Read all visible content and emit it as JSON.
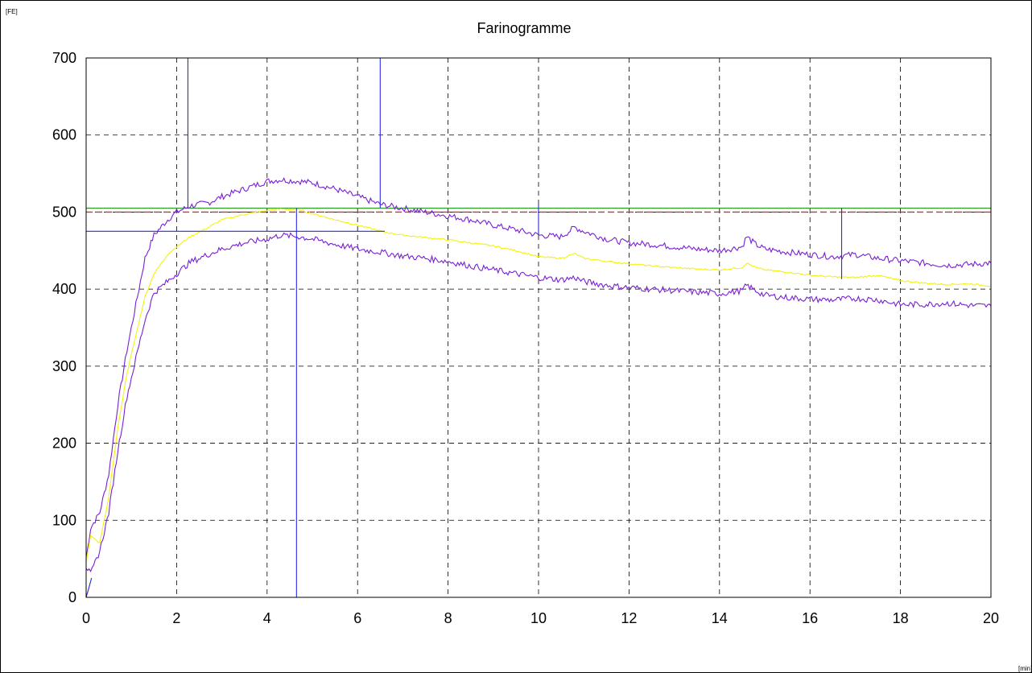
{
  "chart_data": {
    "type": "line",
    "title": "Farinogramme",
    "y_unit_label": "[FE]",
    "x_unit_label": "[min]",
    "xlim": [
      0,
      20
    ],
    "ylim": [
      0,
      700
    ],
    "x_ticks": [
      "0",
      "2",
      "4",
      "6",
      "8",
      "10",
      "12",
      "14",
      "16",
      "18",
      "20"
    ],
    "y_ticks": [
      "0",
      "100",
      "200",
      "300",
      "400",
      "500",
      "600",
      "700"
    ],
    "grid": true,
    "reference_lines": [
      {
        "y": 500,
        "color": "#d03030",
        "style": "dashed"
      },
      {
        "y": 505,
        "color": "#2e9a2e",
        "style": "solid"
      }
    ],
    "series": [
      {
        "role": "upper-band",
        "color": "#7a1fd6",
        "x": [
          0,
          0.1,
          0.3,
          0.5,
          0.7,
          0.9,
          1.1,
          1.3,
          1.5,
          1.8,
          2.0,
          2.3,
          2.7,
          3.0,
          3.5,
          4.0,
          4.3,
          4.7,
          5.0,
          5.5,
          6.0,
          6.5,
          7.0,
          7.5,
          8.0,
          8.5,
          9.0,
          9.5,
          10.0,
          10.5,
          10.8,
          11.0,
          11.5,
          12.0,
          12.5,
          13.0,
          13.5,
          14.0,
          14.5,
          14.6,
          14.8,
          15.0,
          15.5,
          16.0,
          16.5,
          17.0,
          17.5,
          18.0,
          18.5,
          19.0,
          19.5,
          20.0
        ],
        "y": [
          50,
          90,
          110,
          160,
          250,
          320,
          380,
          440,
          470,
          490,
          500,
          508,
          512,
          520,
          530,
          540,
          542,
          540,
          538,
          530,
          520,
          510,
          505,
          500,
          495,
          490,
          483,
          477,
          470,
          468,
          480,
          475,
          465,
          460,
          458,
          455,
          452,
          450,
          455,
          468,
          458,
          452,
          448,
          445,
          442,
          445,
          440,
          437,
          434,
          431,
          432,
          434
        ]
      },
      {
        "role": "mean-curve",
        "color": "#f2f20e",
        "x": [
          0,
          0.1,
          0.3,
          0.5,
          0.7,
          0.9,
          1.1,
          1.3,
          1.5,
          1.8,
          2.0,
          2.3,
          2.7,
          3.0,
          3.5,
          4.0,
          4.3,
          4.7,
          5.0,
          5.5,
          6.0,
          6.6,
          7.0,
          7.5,
          8.0,
          8.5,
          9.0,
          9.5,
          10.0,
          10.5,
          10.8,
          11.0,
          11.5,
          12.0,
          12.5,
          13.0,
          13.5,
          14.0,
          14.5,
          14.6,
          14.8,
          15.0,
          15.5,
          16.0,
          16.5,
          17.0,
          17.5,
          18.0,
          18.5,
          19.0,
          19.5,
          20.0
        ],
        "y": [
          45,
          80,
          70,
          130,
          220,
          290,
          340,
          390,
          420,
          445,
          455,
          468,
          480,
          490,
          497,
          502,
          504,
          503,
          498,
          490,
          483,
          474,
          470,
          467,
          464,
          460,
          456,
          450,
          442,
          440,
          446,
          440,
          436,
          433,
          430,
          428,
          426,
          425,
          428,
          434,
          428,
          425,
          422,
          418,
          416,
          415,
          418,
          411,
          408,
          406,
          407,
          404
        ]
      },
      {
        "role": "lower-band",
        "color": "#7a1fd6",
        "x": [
          0,
          0.1,
          0.3,
          0.5,
          0.7,
          0.9,
          1.1,
          1.3,
          1.5,
          1.8,
          2.0,
          2.3,
          2.7,
          3.0,
          3.5,
          4.0,
          4.3,
          4.7,
          5.0,
          5.5,
          6.0,
          6.5,
          7.0,
          7.5,
          8.0,
          8.5,
          9.0,
          9.5,
          10.0,
          10.5,
          10.8,
          11.0,
          11.5,
          12.0,
          12.5,
          13.0,
          13.5,
          14.0,
          14.5,
          14.6,
          14.8,
          15.0,
          15.5,
          16.0,
          16.5,
          17.0,
          17.5,
          18.0,
          18.5,
          19.0,
          19.5,
          20.0
        ],
        "y": [
          40,
          30,
          60,
          110,
          190,
          260,
          310,
          360,
          395,
          410,
          420,
          435,
          445,
          452,
          460,
          465,
          470,
          468,
          465,
          458,
          452,
          448,
          443,
          440,
          436,
          430,
          425,
          420,
          415,
          412,
          415,
          410,
          405,
          402,
          400,
          398,
          396,
          394,
          398,
          405,
          398,
          392,
          389,
          387,
          386,
          388,
          386,
          380,
          380,
          382,
          379,
          378
        ]
      }
    ],
    "markers": [
      {
        "type": "vertical",
        "x": 2.25,
        "y_from": 505,
        "y_to": 700,
        "color": "#2a2ae8"
      },
      {
        "type": "vertical",
        "x": 6.5,
        "y_from": 505,
        "y_to": 700,
        "color": "#2a2ae8"
      },
      {
        "type": "vertical",
        "x": 4.65,
        "y_from": 0,
        "y_to": 505,
        "color": "#2a2ae8"
      },
      {
        "type": "horizontal",
        "y": 475,
        "x_from": 0,
        "x_to": 6.6,
        "color": "#2a2ae8"
      },
      {
        "type": "vertical",
        "x": 10.0,
        "y_from": 470,
        "y_to": 510,
        "color": "#2a2ae8"
      },
      {
        "type": "vertical",
        "x": 16.7,
        "y_from": 413,
        "y_to": 505,
        "color": "#2a2ae8"
      },
      {
        "type": "trace",
        "x": [
          0,
          0.05,
          0.12
        ],
        "y": [
          0,
          10,
          25
        ],
        "color": "#2a2ae8"
      }
    ],
    "colors": {
      "axis": "#000000",
      "grid": "#000000",
      "marker": "#2a2ae8"
    }
  }
}
